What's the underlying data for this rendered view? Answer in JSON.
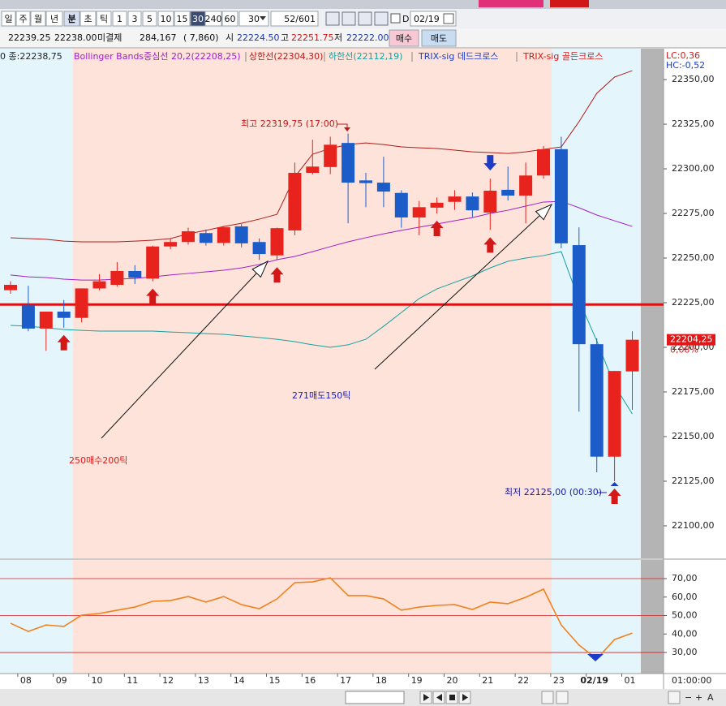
{
  "toolbar": {
    "periods": [
      "일",
      "주",
      "월",
      "년",
      "분",
      "초",
      "틱"
    ],
    "intervals": [
      "1",
      "3",
      "5",
      "10",
      "15",
      "30",
      "240",
      "60"
    ],
    "interval_select": "30",
    "count": "52/601",
    "date_flag": "D",
    "date": "02/19"
  },
  "quote_bar": {
    "prev": "22239.25",
    "last": "22238.00",
    "oi_label": "미결제",
    "oi": "284,167",
    "oi_change": "( 7,860)",
    "open_label": "시",
    "open": "22224.50",
    "high_label": "고",
    "high": "22251.75",
    "low_label": "저",
    "low": "22222.00",
    "buy": "매수",
    "sell": "매도"
  },
  "chart_data": [
    {
      "type": "candlestick",
      "close_label": "0 종:22238,75",
      "corner_labels": [
        "LC:0,36",
        "HC:-0,52"
      ],
      "categories": [
        null,
        "08",
        null,
        "09",
        null,
        "10",
        null,
        "11",
        null,
        "12",
        null,
        "13",
        null,
        "14",
        null,
        "15",
        null,
        "16",
        null,
        "17",
        null,
        "18",
        null,
        "19",
        null,
        "20",
        null,
        "21",
        null,
        "22",
        null,
        "23",
        null,
        "02/19",
        null,
        "01"
      ],
      "x_end_label": "01:00:00",
      "open": [
        22232,
        22223.5,
        22210.5,
        22220,
        22216.5,
        22233,
        22235,
        22242.75,
        22238.5,
        22256.5,
        22259,
        22264,
        22258.5,
        22267.75,
        22259,
        22251.5,
        22265.5,
        22297.75,
        22301,
        22314.5,
        22293.5,
        22292.25,
        22286.5,
        22272.75,
        22278.25,
        22281.5,
        22284.5,
        22275.5,
        22288.25,
        22285,
        22296.25,
        22311,
        22257.25,
        22201.75,
        22138.75,
        22186.5
      ],
      "high": [
        22237,
        22234.5,
        22220,
        22226.5,
        22233,
        22241,
        22247.75,
        22246,
        22257,
        22261,
        22267,
        22266,
        22268,
        22269,
        22261,
        22267,
        22303.5,
        22316.25,
        22318,
        22319.75,
        22297.75,
        22306.75,
        22288,
        22282,
        22284,
        22288,
        22286.75,
        22294.5,
        22301.25,
        22303.5,
        22312.75,
        22318,
        22267.25,
        22205,
        22186.75,
        22209
      ],
      "low": [
        22230,
        22209,
        22198,
        22211,
        22214,
        22232,
        22234,
        22235.5,
        22237,
        22255,
        22257.5,
        22257,
        22257,
        22256,
        22249,
        22249,
        22262.75,
        22296.75,
        22297,
        22269.5,
        22278.5,
        22278.5,
        22267,
        22262.75,
        22275,
        22277,
        22273,
        22265.75,
        22282.25,
        22269.5,
        22294.5,
        22255.5,
        22164,
        22130,
        22125,
        22165
      ],
      "close": [
        22235,
        22210.5,
        22220,
        22216.5,
        22233,
        22237,
        22242.75,
        22239,
        22256.5,
        22259,
        22265,
        22258.5,
        22267.25,
        22258.25,
        22252.25,
        22266.75,
        22297.75,
        22301.25,
        22313.5,
        22292.25,
        22292,
        22287.25,
        22272.75,
        22278.5,
        22281,
        22284.5,
        22276.75,
        22287.75,
        22285,
        22296.25,
        22311,
        22258.25,
        22201.75,
        22138.75,
        22186.75,
        22204.25
      ],
      "up_color": "#e8221c",
      "down_color": "#1c5cc8",
      "series": [
        {
          "name": "Bollinger Bands중심선 20,2(22208,25)",
          "color": "#a020c8",
          "values": [
            22240.5,
            22239.5,
            22239.1,
            22238.2,
            22237.7,
            22237.7,
            22238.2,
            22238.6,
            22239.5,
            22240.5,
            22241.4,
            22242.3,
            22243.2,
            22244.5,
            22246.4,
            22249.1,
            22250.9,
            22253.6,
            22256.4,
            22259.1,
            22261.4,
            22263.6,
            22265.5,
            22267.3,
            22269.1,
            22270.9,
            22272.7,
            22275,
            22276.8,
            22279.1,
            22281.4,
            22281.8,
            22278.2,
            22274.1,
            22270.9,
            22267.7
          ]
        },
        {
          "name": "상한선(22304,30)",
          "color": "#b01c1c",
          "values": [
            22261.4,
            22260.9,
            22260.5,
            22259.5,
            22259.1,
            22259.1,
            22259.1,
            22259.5,
            22260,
            22260.9,
            22263.6,
            22265.5,
            22267.7,
            22269.5,
            22271.8,
            22274.5,
            22295.5,
            22308.2,
            22311.4,
            22313.6,
            22314.5,
            22313.6,
            22312.3,
            22311.8,
            22311.4,
            22310.5,
            22309.5,
            22309.1,
            22308.6,
            22309.5,
            22310.9,
            22312.3,
            22326.4,
            22342.3,
            22351.4,
            22355
          ]
        },
        {
          "name": "하한선(22112,19)",
          "color": "#16a0a0",
          "values": [
            22212.3,
            22211.8,
            22210.9,
            22210,
            22209.5,
            22209.1,
            22209.1,
            22209.1,
            22209.1,
            22208.6,
            22208.2,
            22207.7,
            22207.3,
            22206.4,
            22205.5,
            22204.5,
            22203.2,
            22201.4,
            22200,
            22201.4,
            22204.5,
            22211.8,
            22219.5,
            22227.3,
            22232.7,
            22236.4,
            22240,
            22244.5,
            22248.2,
            22250,
            22251.4,
            22253.6,
            22226.4,
            22203.6,
            22178.6,
            22162.7
          ]
        }
      ],
      "signals": [
        {
          "name": "TRIX-sig 데드크로스",
          "color": "#1c3cc8"
        },
        {
          "name": "TRIX-sig 골든크로스",
          "color": "#d41818"
        }
      ],
      "price_line": 22224,
      "price_line_color": "#dd1111",
      "last_price": {
        "value": 22204.25,
        "label": "22204,25"
      },
      "last_change": "0,08%",
      "annotations": [
        "최고 22319,75 (17:00)",
        "최저 22125,00 (00:30)",
        "250매수200틱",
        "271매도150틱"
      ],
      "ylim": [
        22081.8,
        22367.3
      ],
      "yticks": [
        {
          "value": 22350,
          "label": "22350,00"
        },
        {
          "value": 22325,
          "label": "22325,00"
        },
        {
          "value": 22300,
          "label": "22300,00"
        },
        {
          "value": 22275,
          "label": "22275,00"
        },
        {
          "value": 22250,
          "label": "22250,00"
        },
        {
          "value": 22225,
          "label": "22225,00"
        },
        {
          "value": 22200,
          "label": "22200,00"
        },
        {
          "value": 22175,
          "label": "22175,00"
        },
        {
          "value": 22150,
          "label": "22150,00"
        },
        {
          "value": 22125,
          "label": "22125,00"
        },
        {
          "value": 22100,
          "label": "22100,00"
        }
      ]
    },
    {
      "type": "line",
      "series": [
        {
          "color": "#f0821e",
          "values": [
            45.8,
            41.4,
            44.9,
            44.1,
            50.2,
            51.1,
            52.9,
            54.6,
            57.7,
            58.1,
            60.3,
            57.3,
            60.3,
            55.9,
            53.7,
            59,
            67.8,
            68.2,
            70.4,
            60.8,
            60.8,
            59,
            52.9,
            54.6,
            55.5,
            55.9,
            53.3,
            57.3,
            56.4,
            59.9,
            64.3,
            44.9,
            34,
            26.5,
            37,
            40.5
          ]
        }
      ],
      "hlines": [
        70,
        50,
        30
      ],
      "hline_color": "#d42020",
      "ylim": [
        18.6,
        80.1
      ],
      "yticks": [
        {
          "value": 70,
          "label": "70,00"
        },
        {
          "value": 60,
          "label": "60,00"
        },
        {
          "value": 50,
          "label": "50,00"
        },
        {
          "value": 40,
          "label": "40,00"
        },
        {
          "value": 30,
          "label": "30,00"
        }
      ]
    }
  ]
}
